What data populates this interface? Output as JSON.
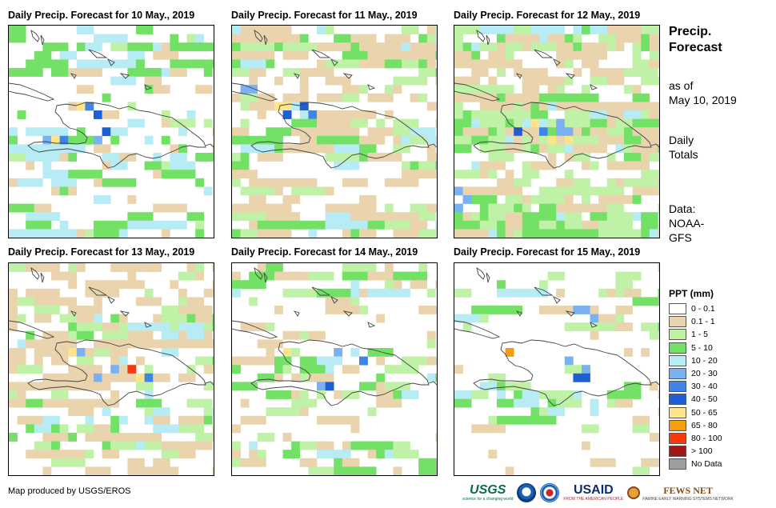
{
  "panels": [
    {
      "title": "Daily  Precip.  Forecast for 10 May., 2019",
      "seed": 11,
      "pattern": "d10"
    },
    {
      "title": "Daily  Precip.  Forecast for 11 May., 2019",
      "seed": 23,
      "pattern": "d11"
    },
    {
      "title": "Daily  Precip.  Forecast for 12 May., 2019",
      "seed": 37,
      "pattern": "d12"
    },
    {
      "title": "Daily  Precip.  Forecast for 13 May., 2019",
      "seed": 41,
      "pattern": "d13"
    },
    {
      "title": "Daily  Precip.  Forecast for 14 May., 2019",
      "seed": 59,
      "pattern": "d14"
    },
    {
      "title": "Daily  Precip.  Forecast for 15 May., 2019",
      "seed": 67,
      "pattern": "d15"
    }
  ],
  "side": {
    "title_line1": "Precip.",
    "title_line2": "Forecast",
    "asof_line1": "as of",
    "asof_line2": "May 10, 2019",
    "daily_line1": "Daily",
    "daily_line2": "Totals",
    "data_line1": "Data:",
    "data_line2": "NOAA-",
    "data_line3": "GFS"
  },
  "legend": {
    "title": "PPT (mm)",
    "items": [
      {
        "label": "0 - 0.1",
        "color": "#ffffff"
      },
      {
        "label": "0.1 - 1",
        "color": "#e9d4ad"
      },
      {
        "label": "1 - 5",
        "color": "#bff2a6"
      },
      {
        "label": "5 - 10",
        "color": "#73e066"
      },
      {
        "label": "10 - 20",
        "color": "#b8ecf5"
      },
      {
        "label": "20 - 30",
        "color": "#7ab1f2"
      },
      {
        "label": "30 - 40",
        "color": "#3f84e8"
      },
      {
        "label": "40 - 50",
        "color": "#1f5fd6"
      },
      {
        "label": "50 - 65",
        "color": "#fce58a"
      },
      {
        "label": "65 - 80",
        "color": "#f79d0c"
      },
      {
        "label": "80 - 100",
        "color": "#f53a0e"
      },
      {
        "label": "> 100",
        "color": "#a31616"
      },
      {
        "label": "No Data",
        "color": "#9e9e9e"
      }
    ]
  },
  "footer": {
    "credit": "Map produced by USGS/EROS",
    "logos": {
      "usgs": "USGS",
      "usgs_tagline": "science for a changing world",
      "usaid": "USAID",
      "usaid_tagline": "FROM THE AMERICAN PEOPLE",
      "fews": "FEWS NET",
      "fews_tagline": "FAMINE EARLY WARNING SYSTEMS NETWORK"
    }
  }
}
